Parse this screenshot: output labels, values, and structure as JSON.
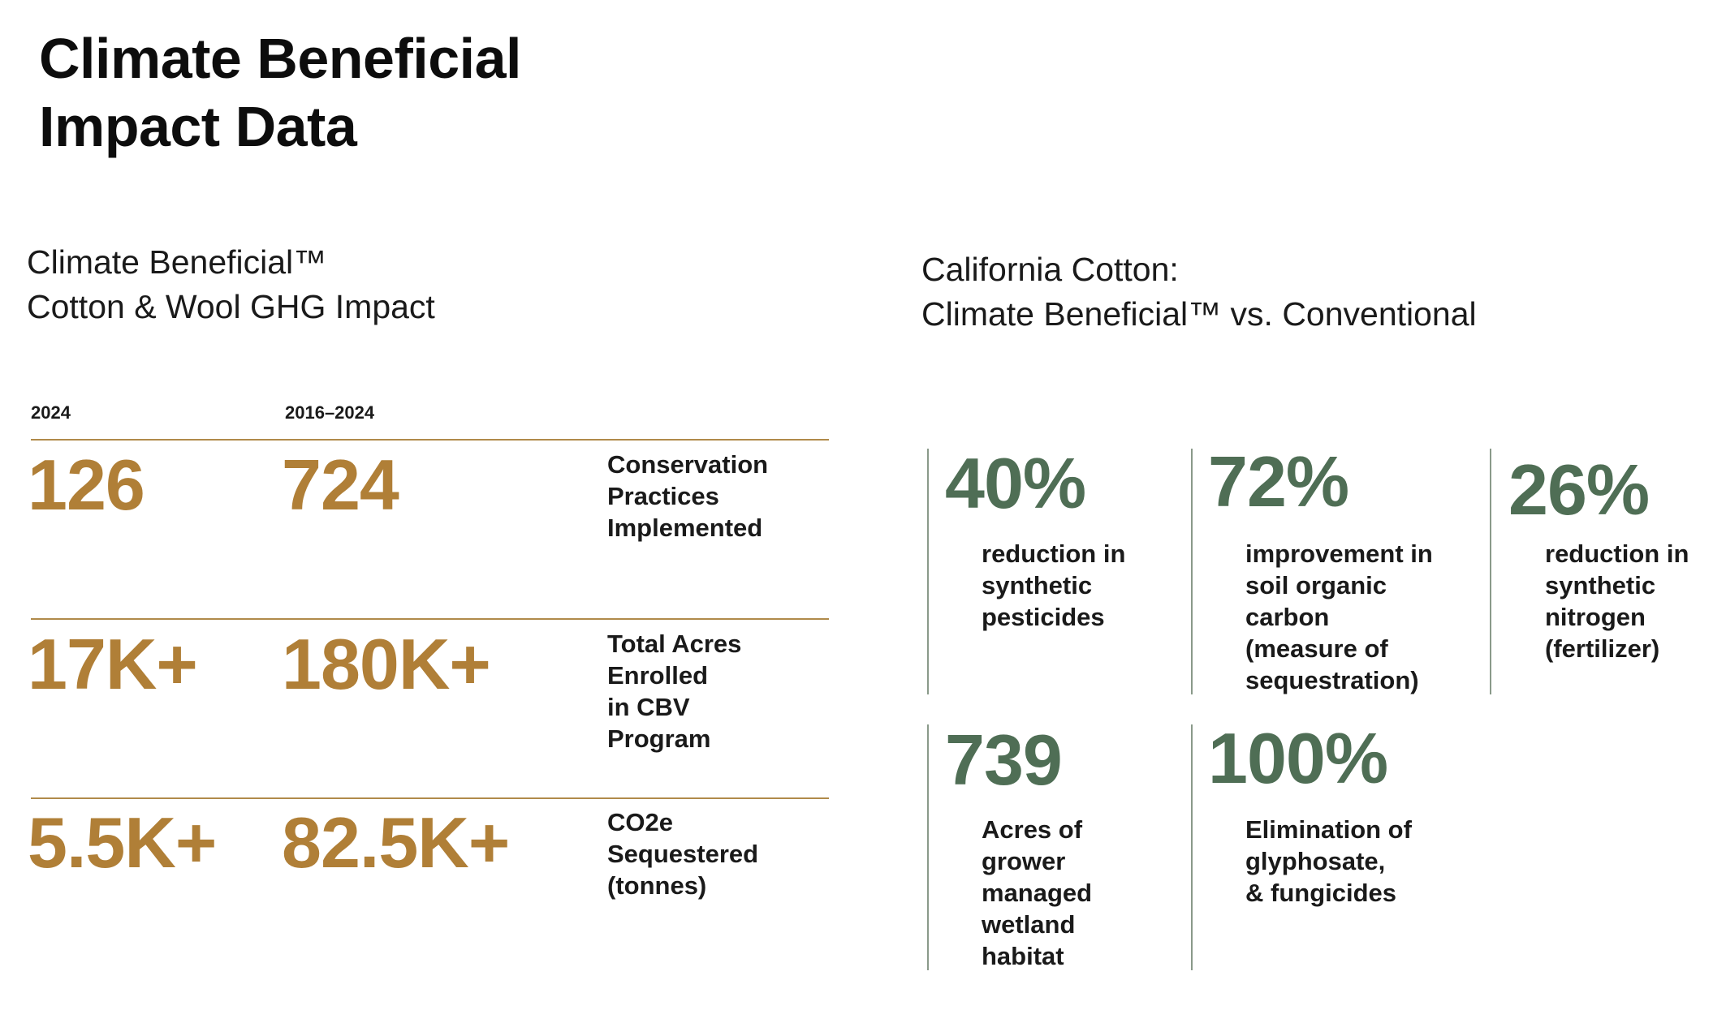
{
  "title": {
    "line1": "Climate Beneficial",
    "line2": "Impact Data"
  },
  "left_section": {
    "heading": {
      "line1": "Climate Beneficial™",
      "line2": "Cotton & Wool GHG Impact"
    },
    "column_headers": [
      "2024",
      "2016–2024"
    ],
    "rows": [
      {
        "value_2024": "126",
        "value_total": "724",
        "label_lines": [
          "Conservation",
          "Practices",
          "Implemented"
        ]
      },
      {
        "value_2024": "17K+",
        "value_total": "180K+",
        "label_lines": [
          "Total Acres",
          "Enrolled",
          "in CBV",
          "Program"
        ]
      },
      {
        "value_2024": "5.5K+",
        "value_total": "82.5K+",
        "label_lines": [
          "CO2e",
          "Sequestered",
          "(tonnes)"
        ]
      }
    ]
  },
  "right_section": {
    "heading": {
      "line1": "California Cotton:",
      "line2": "Climate Beneficial™ vs. Conventional"
    },
    "stats": [
      {
        "value": "40%",
        "desc_lines": [
          "reduction in",
          "synthetic",
          "pesticides"
        ]
      },
      {
        "value": "72%",
        "desc_lines": [
          "improvement in",
          "soil organic",
          "carbon",
          "(measure of",
          "sequestration)"
        ]
      },
      {
        "value": "26%",
        "desc_lines": [
          "reduction in",
          "synthetic",
          "nitrogen",
          "(fertilizer)"
        ]
      },
      {
        "value": "739",
        "desc_lines": [
          "Acres of",
          "grower",
          "managed",
          "wetland",
          "habitat"
        ]
      },
      {
        "value": "100%",
        "desc_lines": [
          "Elimination of",
          "glyphosate,",
          "& fungicides"
        ]
      }
    ]
  },
  "colors": {
    "gold": "#b07f37",
    "green": "#4f6e55",
    "rule": "#b08a4a",
    "divider": "#8a9a8a"
  }
}
